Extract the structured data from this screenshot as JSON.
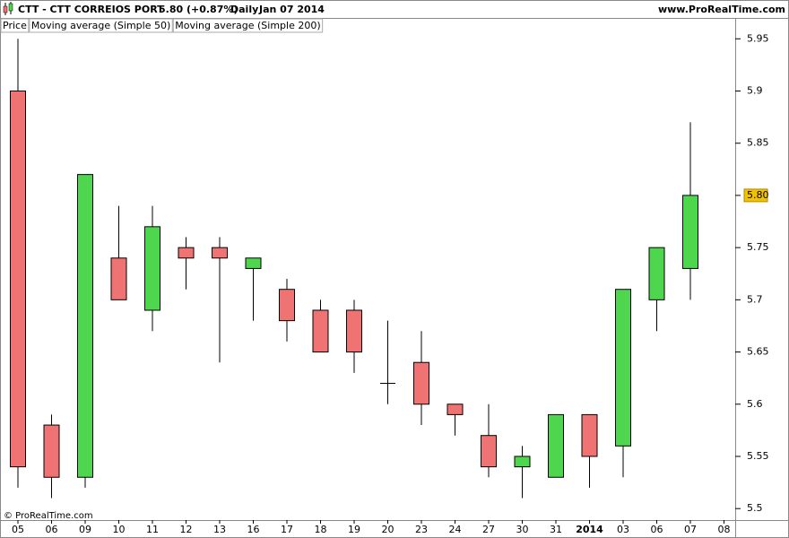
{
  "chart_data": {
    "type": "candlestick",
    "title": "CTT - CTT CORREIOS PORT",
    "price_change": "5.80 (+0.87%)",
    "period": "Daily",
    "date": "Jan 07 2014",
    "source": "www.ProRealTime.com",
    "copyright": "© ProRealTime.com",
    "legend": [
      {
        "name": "Price",
        "color": "#000000"
      },
      {
        "name": "Moving average (Simple 50)",
        "color": "#e02020"
      },
      {
        "name": "Moving average (Simple 200)",
        "color": "#20c060"
      }
    ],
    "categories": [
      "05",
      "06",
      "09",
      "10",
      "11",
      "12",
      "13",
      "16",
      "17",
      "18",
      "19",
      "20",
      "23",
      "24",
      "27",
      "30",
      "31",
      "2014",
      "03",
      "06",
      "07",
      "08"
    ],
    "open": [
      5.9,
      5.58,
      5.53,
      5.74,
      5.69,
      5.75,
      5.75,
      5.73,
      5.71,
      5.69,
      5.69,
      5.62,
      5.64,
      5.6,
      5.57,
      5.54,
      5.53,
      5.59,
      5.56,
      5.7,
      5.73,
      null
    ],
    "high": [
      5.95,
      5.59,
      5.82,
      5.79,
      5.79,
      5.76,
      5.76,
      5.74,
      5.72,
      5.7,
      5.7,
      5.68,
      5.67,
      5.6,
      5.6,
      5.56,
      5.59,
      5.59,
      5.71,
      5.75,
      5.87,
      null
    ],
    "low": [
      5.52,
      5.51,
      5.52,
      5.7,
      5.67,
      5.71,
      5.64,
      5.68,
      5.66,
      5.65,
      5.63,
      5.6,
      5.58,
      5.57,
      5.53,
      5.51,
      5.53,
      5.52,
      5.53,
      5.67,
      5.7,
      null
    ],
    "close": [
      5.54,
      5.53,
      5.82,
      5.7,
      5.77,
      5.74,
      5.74,
      5.74,
      5.68,
      5.65,
      5.65,
      5.62,
      5.6,
      5.59,
      5.54,
      5.55,
      5.59,
      5.55,
      5.71,
      5.75,
      5.8,
      null
    ],
    "up_color": "#4fd64f",
    "down_color": "#f07373",
    "ylim": [
      5.489,
      5.97
    ],
    "yticks": [
      5.5,
      5.55,
      5.6,
      5.65,
      5.7,
      5.75,
      {
        "value": 5.8,
        "label": "5.80"
      },
      5.85,
      5.9,
      5.95
    ],
    "highlight_last_close": true,
    "bold_category": "2014"
  }
}
